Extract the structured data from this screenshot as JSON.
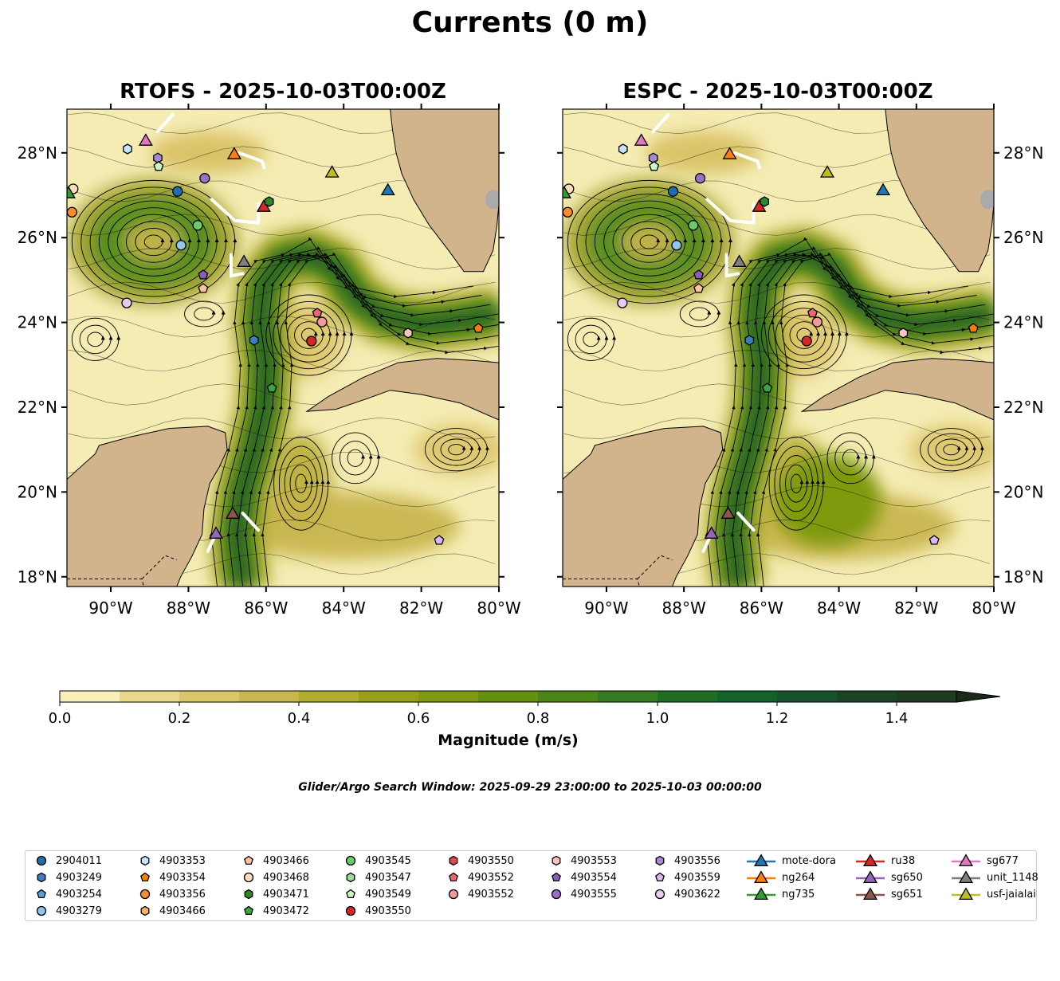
{
  "title": "Currents (0 m)",
  "panels": [
    {
      "title": "RTOFS - 2025-10-03T00:00Z"
    },
    {
      "title": "ESPC - 2025-10-03T00:00Z"
    }
  ],
  "colorbar": {
    "label": "Magnitude (m/s)",
    "ticks": [
      "0.0",
      "0.2",
      "0.4",
      "0.6",
      "0.8",
      "1.0",
      "1.2",
      "1.4"
    ],
    "levels": [
      0,
      0.1,
      0.2,
      0.3,
      0.4,
      0.5,
      0.6,
      0.7,
      0.8,
      0.9,
      1.0,
      1.1,
      1.2,
      1.3,
      1.4,
      1.5
    ],
    "colors": [
      "#f7f0b8",
      "#ead98a",
      "#dcc66a",
      "#c9b64f",
      "#b0ac2e",
      "#98a01a",
      "#7f9a10",
      "#64900f",
      "#4b8518",
      "#347a1f",
      "#1f6e26",
      "#136328",
      "#17522a",
      "#1c4424",
      "#1e3a20"
    ],
    "extend": "max"
  },
  "search_window": "Glider/Argo Search Window: 2025-09-29 23:00:00 to 2025-10-03 00:00:00",
  "chart_data": {
    "type": "map",
    "extent": {
      "lon": [
        -91.13,
        -80.0
      ],
      "lat": [
        17.77,
        29.03
      ]
    },
    "lon_ticks": [
      "90°W",
      "88°W",
      "86°W",
      "84°W",
      "82°W",
      "80°W"
    ],
    "lat_ticks": [
      "18°N",
      "20°N",
      "22°N",
      "24°N",
      "26°N",
      "28°N"
    ],
    "markers": [
      {
        "id": "sg677",
        "kind": "glider",
        "shape": "tri",
        "color": "#e377c2",
        "lon": -89.1,
        "lat": 28.3
      },
      {
        "id": "4903353",
        "kind": "argo",
        "shape": "hex",
        "color": "#c6e5fb",
        "lon": -89.57,
        "lat": 28.09
      },
      {
        "id": "4903556",
        "kind": "argo",
        "shape": "hex",
        "color": "#a58ad0",
        "lon": -88.79,
        "lat": 27.88
      },
      {
        "id": "4903549",
        "kind": "argo",
        "shape": "pent",
        "color": "#cbf7c2",
        "lon": -88.77,
        "lat": 27.68
      },
      {
        "id": "ng264",
        "kind": "glider",
        "shape": "tri",
        "color": "#ff7f0e",
        "lon": -86.82,
        "lat": 27.98
      },
      {
        "id": "4903555",
        "kind": "argo",
        "shape": "circle",
        "color": "#9b6fc6",
        "lon": -87.58,
        "lat": 27.4
      },
      {
        "id": "usf-jaialai",
        "kind": "glider",
        "shape": "tri",
        "color": "#bcbd22",
        "lon": -84.3,
        "lat": 27.55
      },
      {
        "id": "mote-dora",
        "kind": "glider",
        "shape": "tri",
        "color": "#1f77b4",
        "lon": -82.86,
        "lat": 27.13
      },
      {
        "id": "2904011",
        "kind": "argo",
        "shape": "circle",
        "color": "#1f6fad",
        "lon": -88.28,
        "lat": 27.09
      },
      {
        "id": "ru38",
        "kind": "glider",
        "shape": "tri",
        "color": "#d62728",
        "lon": -86.06,
        "lat": 26.74
      },
      {
        "id": "4903471",
        "kind": "argo",
        "shape": "hex",
        "color": "#2a8a2a",
        "lon": -85.92,
        "lat": 26.85
      },
      {
        "id": "4903545",
        "kind": "argo",
        "shape": "circle",
        "color": "#6acc64",
        "lon": -87.76,
        "lat": 26.29
      },
      {
        "id": "4903279",
        "kind": "argo",
        "shape": "circle",
        "color": "#8ec6ed",
        "lon": -88.19,
        "lat": 25.82
      },
      {
        "id": "unit_1148",
        "kind": "glider",
        "shape": "tri",
        "color": "#7f7f7f",
        "lon": -86.57,
        "lat": 25.44
      },
      {
        "id": "4903554",
        "kind": "argo",
        "shape": "pent",
        "color": "#8b5eb8",
        "lon": -87.62,
        "lat": 25.12
      },
      {
        "id": "4903466",
        "kind": "argo",
        "shape": "pent",
        "color": "#fcc59a",
        "lon": -87.62,
        "lat": 24.8
      },
      {
        "id": "4903622",
        "kind": "argo",
        "shape": "circle",
        "color": "#e4ccf5",
        "lon": -89.59,
        "lat": 24.46
      },
      {
        "id": "4903552",
        "kind": "argo",
        "shape": "pent",
        "color": "#e66870",
        "lon": -84.68,
        "lat": 24.22
      },
      {
        "id": "4903552",
        "kind": "argo",
        "shape": "circle",
        "color": "#f29a9a",
        "lon": -84.56,
        "lat": 24.01
      },
      {
        "id": "4903553",
        "kind": "argo",
        "shape": "hex",
        "color": "#fbc3c3",
        "lon": -82.34,
        "lat": 23.75
      },
      {
        "id": "4903354",
        "kind": "argo",
        "shape": "pent",
        "color": "#f57d0c",
        "lon": -80.53,
        "lat": 23.86
      },
      {
        "id": "4903249",
        "kind": "argo",
        "shape": "hex",
        "color": "#3a7fc0",
        "lon": -86.31,
        "lat": 23.58
      },
      {
        "id": "4903550",
        "kind": "argo",
        "shape": "circle",
        "color": "#d62728",
        "lon": -84.83,
        "lat": 23.56
      },
      {
        "id": "4903472",
        "kind": "argo",
        "shape": "pent",
        "color": "#3aa544",
        "lon": -85.85,
        "lat": 22.45
      },
      {
        "id": "sg651",
        "kind": "glider",
        "shape": "tri",
        "color": "#8c564b",
        "lon": -86.86,
        "lat": 19.5
      },
      {
        "id": "sg650",
        "kind": "glider",
        "shape": "tri",
        "color": "#9467bd",
        "lon": -87.29,
        "lat": 19.03
      },
      {
        "id": "4903559",
        "kind": "argo",
        "shape": "pent",
        "color": "#d9b8f0",
        "lon": -81.54,
        "lat": 18.86
      },
      {
        "id": "4903356",
        "kind": "argo",
        "shape": "circle",
        "color": "#fd8d2c",
        "lon": -91.0,
        "lat": 26.6
      },
      {
        "id": "4903468",
        "kind": "argo",
        "shape": "circle",
        "color": "#fddcc0",
        "lon": -90.97,
        "lat": 27.15
      },
      {
        "id": "ng735",
        "kind": "glider",
        "shape": "tri",
        "color": "#2ca02c",
        "lon": -91.09,
        "lat": 27.06
      }
    ]
  },
  "legend": [
    {
      "label": "2904011",
      "shape": "circle",
      "color": "#1f6fad"
    },
    {
      "label": "4903249",
      "shape": "hex",
      "color": "#3a7fc0"
    },
    {
      "label": "4903254",
      "shape": "pent",
      "color": "#5a9fd4"
    },
    {
      "label": "4903279",
      "shape": "circle",
      "color": "#8ec6ed"
    },
    {
      "label": "4903353",
      "shape": "hex",
      "color": "#c6e5fb"
    },
    {
      "label": "4903354",
      "shape": "pent",
      "color": "#f57d0c"
    },
    {
      "label": "4903356",
      "shape": "circle",
      "color": "#fd8d2c"
    },
    {
      "label": "4903466",
      "shape": "hex",
      "color": "#fdae6b"
    },
    {
      "label": "4903466",
      "shape": "pent",
      "color": "#fcc59a"
    },
    {
      "label": "4903468",
      "shape": "circle",
      "color": "#fddcc0"
    },
    {
      "label": "4903471",
      "shape": "hex",
      "color": "#2a8a2a"
    },
    {
      "label": "4903472",
      "shape": "pent",
      "color": "#3aa544"
    },
    {
      "label": "4903545",
      "shape": "circle",
      "color": "#6acc64"
    },
    {
      "label": "4903547",
      "shape": "hex",
      "color": "#98e08e"
    },
    {
      "label": "4903549",
      "shape": "pent",
      "color": "#cbf7c2"
    },
    {
      "label": "4903550",
      "shape": "circle",
      "color": "#d62728"
    },
    {
      "label": "4903550",
      "shape": "hex",
      "color": "#e0484a"
    },
    {
      "label": "4903552",
      "shape": "pent",
      "color": "#e66870"
    },
    {
      "label": "4903552",
      "shape": "circle",
      "color": "#f29a9a"
    },
    {
      "label": "4903553",
      "shape": "hex",
      "color": "#fbc3c3"
    },
    {
      "label": "4903554",
      "shape": "pent",
      "color": "#8b5eb8"
    },
    {
      "label": "4903555",
      "shape": "circle",
      "color": "#9b6fc6"
    },
    {
      "label": "4903556",
      "shape": "hex",
      "color": "#a58ad0"
    },
    {
      "label": "4903559",
      "shape": "pent",
      "color": "#d9b8f0"
    },
    {
      "label": "4903622",
      "shape": "circle",
      "color": "#e4ccf5"
    },
    {
      "label": "mote-dora",
      "shape": "tri",
      "color": "#1f77b4"
    },
    {
      "label": "ng264",
      "shape": "tri",
      "color": "#ff7f0e"
    },
    {
      "label": "ng735",
      "shape": "tri",
      "color": "#2ca02c"
    },
    {
      "label": "ru38",
      "shape": "tri",
      "color": "#d62728"
    },
    {
      "label": "sg650",
      "shape": "tri",
      "color": "#9467bd"
    },
    {
      "label": "sg651",
      "shape": "tri",
      "color": "#8c564b"
    },
    {
      "label": "sg677",
      "shape": "tri",
      "color": "#e377c2"
    },
    {
      "label": "unit_1148",
      "shape": "tri",
      "color": "#7f7f7f"
    },
    {
      "label": "usf-jaialai",
      "shape": "tri",
      "color": "#bcbd22"
    }
  ]
}
